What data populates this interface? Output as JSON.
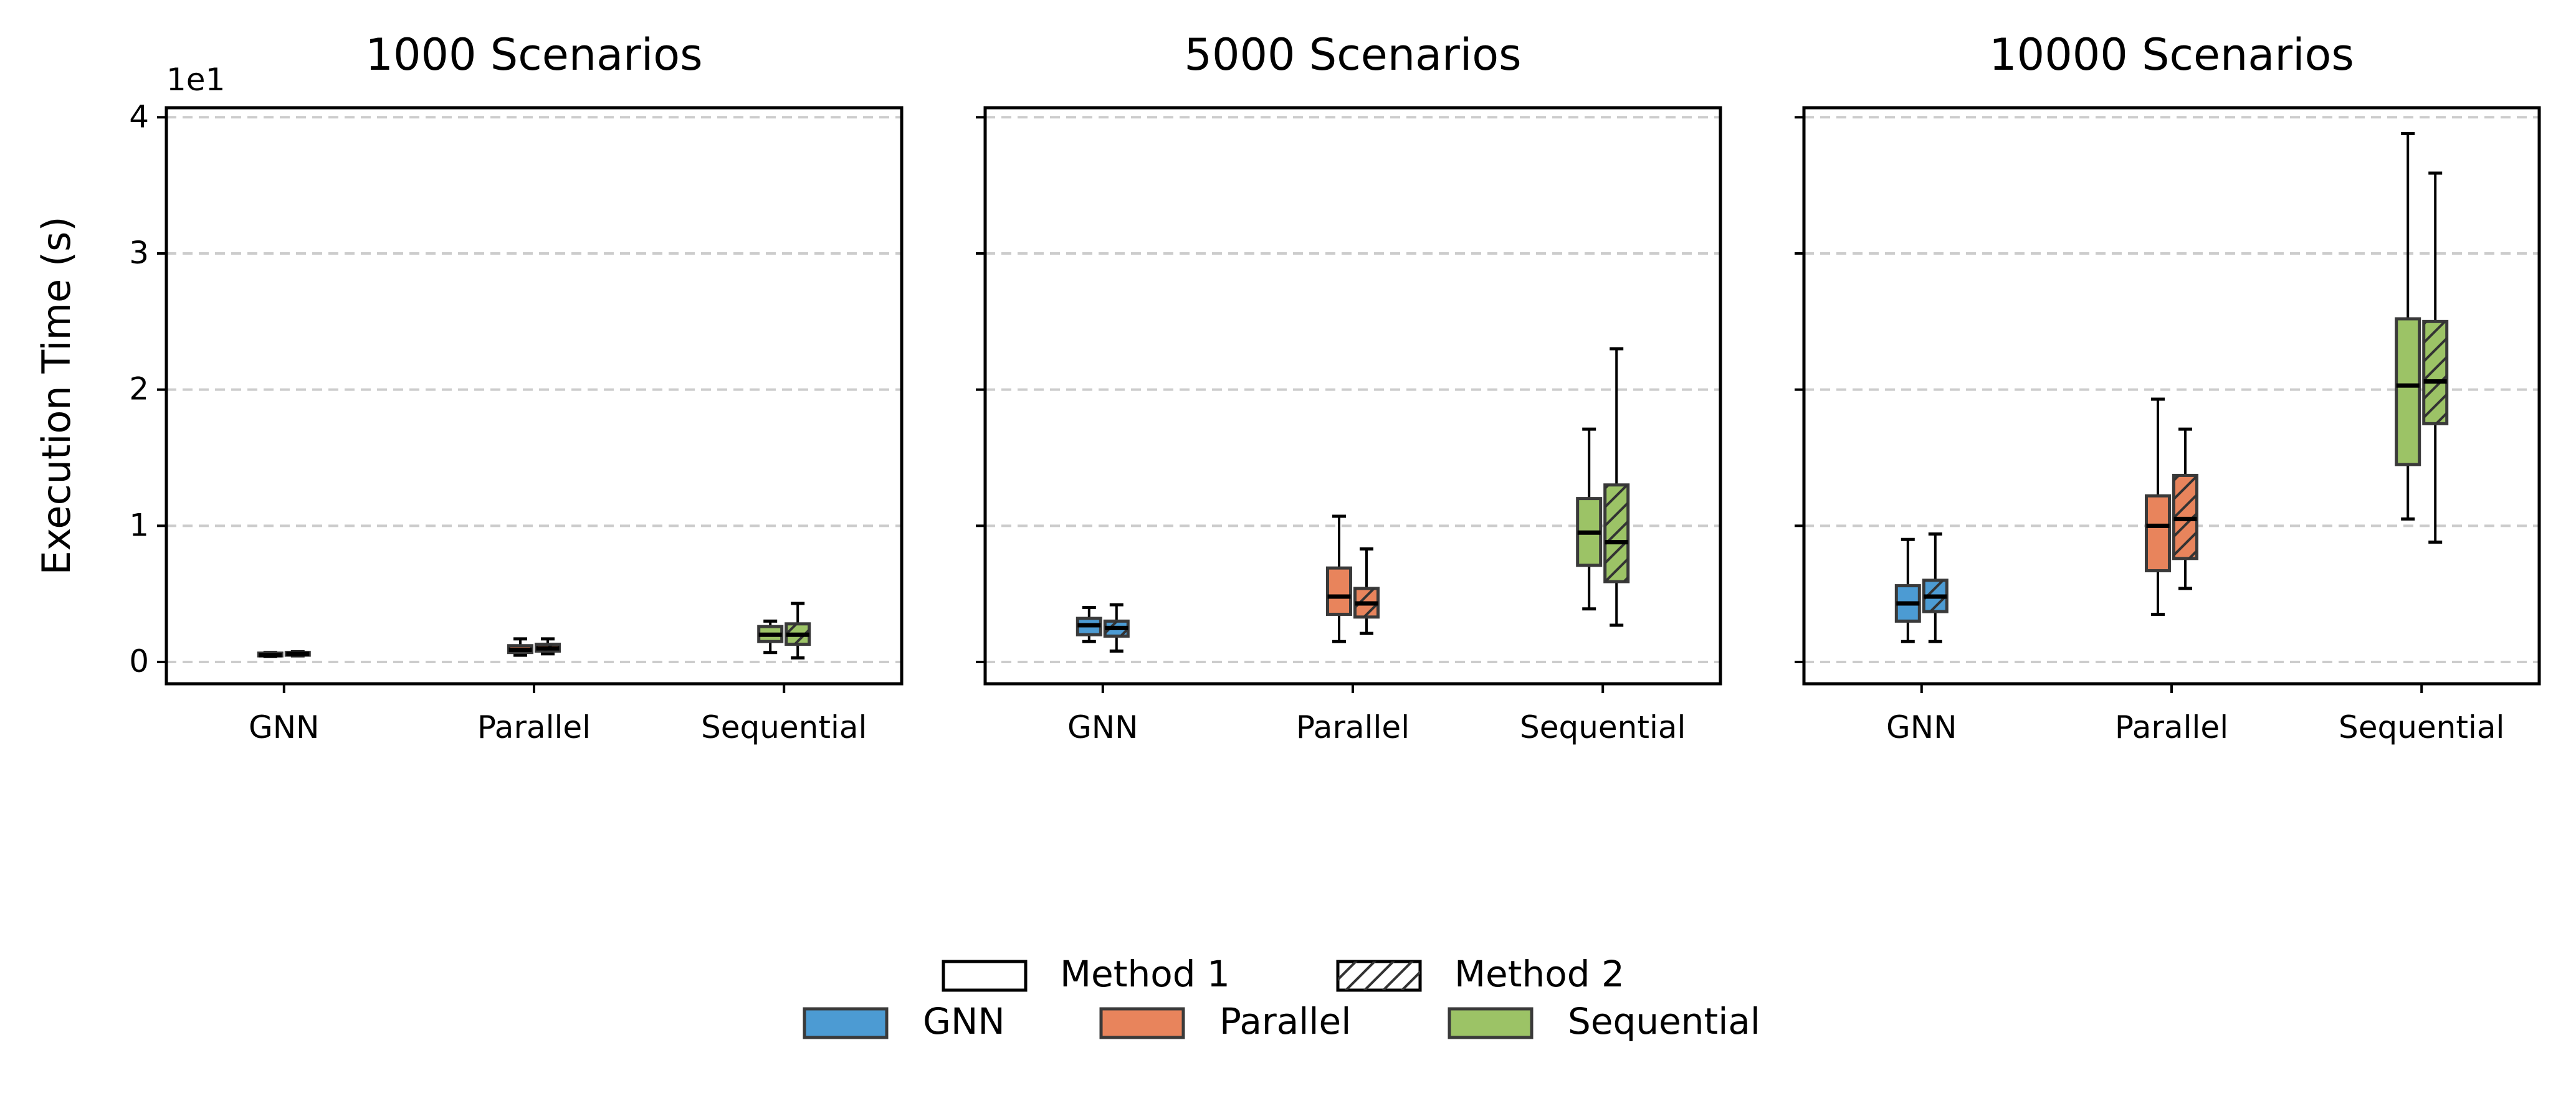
{
  "figure": {
    "ylabel": "Execution Time (s)",
    "offset_text": "1e1",
    "yticks": [
      0,
      1,
      2,
      3,
      4
    ],
    "ylim": [
      -0.16,
      4.07
    ],
    "grid": "y-dashed",
    "colors": {
      "GNN": "#4c9bd3",
      "Parallel": "#e8845c",
      "Sequential": "#9cc366"
    },
    "legend": {
      "placement": "bottom-center",
      "method_entries": [
        {
          "label": "Method 1",
          "hatch": "none"
        },
        {
          "label": "Method 2",
          "hatch": "diagonal"
        }
      ],
      "category_entries": [
        {
          "label": "GNN",
          "color": "#4c9bd3"
        },
        {
          "label": "Parallel",
          "color": "#e8845c"
        },
        {
          "label": "Sequential",
          "color": "#9cc366"
        }
      ]
    }
  },
  "chart_data": [
    {
      "type": "box",
      "title": "1000 Scenarios",
      "xlabel": "",
      "ylabel": "Execution Time (s)",
      "y_scale_note": "1e1",
      "categories": [
        "GNN",
        "Parallel",
        "Sequential"
      ],
      "series": [
        {
          "name": "Method 1",
          "boxes": [
            {
              "whislo": 0.04,
              "q1": 0.045,
              "med": 0.05,
              "q3": 0.065,
              "whishi": 0.07
            },
            {
              "whislo": 0.05,
              "q1": 0.07,
              "med": 0.09,
              "q3": 0.12,
              "whishi": 0.17
            },
            {
              "whislo": 0.07,
              "q1": 0.15,
              "med": 0.2,
              "q3": 0.26,
              "whishi": 0.3
            }
          ]
        },
        {
          "name": "Method 2",
          "boxes": [
            {
              "whislo": 0.045,
              "q1": 0.05,
              "med": 0.06,
              "q3": 0.07,
              "whishi": 0.075
            },
            {
              "whislo": 0.06,
              "q1": 0.08,
              "med": 0.1,
              "q3": 0.13,
              "whishi": 0.17
            },
            {
              "whislo": 0.03,
              "q1": 0.13,
              "med": 0.2,
              "q3": 0.28,
              "whishi": 0.43
            }
          ]
        }
      ]
    },
    {
      "type": "box",
      "title": "5000 Scenarios",
      "xlabel": "",
      "ylabel": "",
      "categories": [
        "GNN",
        "Parallel",
        "Sequential"
      ],
      "series": [
        {
          "name": "Method 1",
          "boxes": [
            {
              "whislo": 0.15,
              "q1": 0.2,
              "med": 0.27,
              "q3": 0.32,
              "whishi": 0.4
            },
            {
              "whislo": 0.15,
              "q1": 0.35,
              "med": 0.48,
              "q3": 0.69,
              "whishi": 1.07
            },
            {
              "whislo": 0.39,
              "q1": 0.71,
              "med": 0.95,
              "q3": 1.2,
              "whishi": 1.71
            }
          ]
        },
        {
          "name": "Method 2",
          "boxes": [
            {
              "whislo": 0.08,
              "q1": 0.19,
              "med": 0.25,
              "q3": 0.3,
              "whishi": 0.42
            },
            {
              "whislo": 0.21,
              "q1": 0.33,
              "med": 0.43,
              "q3": 0.54,
              "whishi": 0.83
            },
            {
              "whislo": 0.27,
              "q1": 0.59,
              "med": 0.88,
              "q3": 1.3,
              "whishi": 2.3
            }
          ]
        }
      ]
    },
    {
      "type": "box",
      "title": "10000 Scenarios",
      "xlabel": "",
      "ylabel": "",
      "categories": [
        "GNN",
        "Parallel",
        "Sequential"
      ],
      "series": [
        {
          "name": "Method 1",
          "boxes": [
            {
              "whislo": 0.15,
              "q1": 0.3,
              "med": 0.43,
              "q3": 0.56,
              "whishi": 0.9
            },
            {
              "whislo": 0.35,
              "q1": 0.67,
              "med": 1.0,
              "q3": 1.22,
              "whishi": 1.93
            },
            {
              "whislo": 1.05,
              "q1": 1.45,
              "med": 2.03,
              "q3": 2.52,
              "whishi": 3.88
            }
          ]
        },
        {
          "name": "Method 2",
          "boxes": [
            {
              "whislo": 0.15,
              "q1": 0.37,
              "med": 0.48,
              "q3": 0.6,
              "whishi": 0.94
            },
            {
              "whislo": 0.54,
              "q1": 0.76,
              "med": 1.05,
              "q3": 1.37,
              "whishi": 1.71
            },
            {
              "whislo": 0.88,
              "q1": 1.75,
              "med": 2.06,
              "q3": 2.5,
              "whishi": 3.59
            }
          ]
        }
      ]
    }
  ]
}
